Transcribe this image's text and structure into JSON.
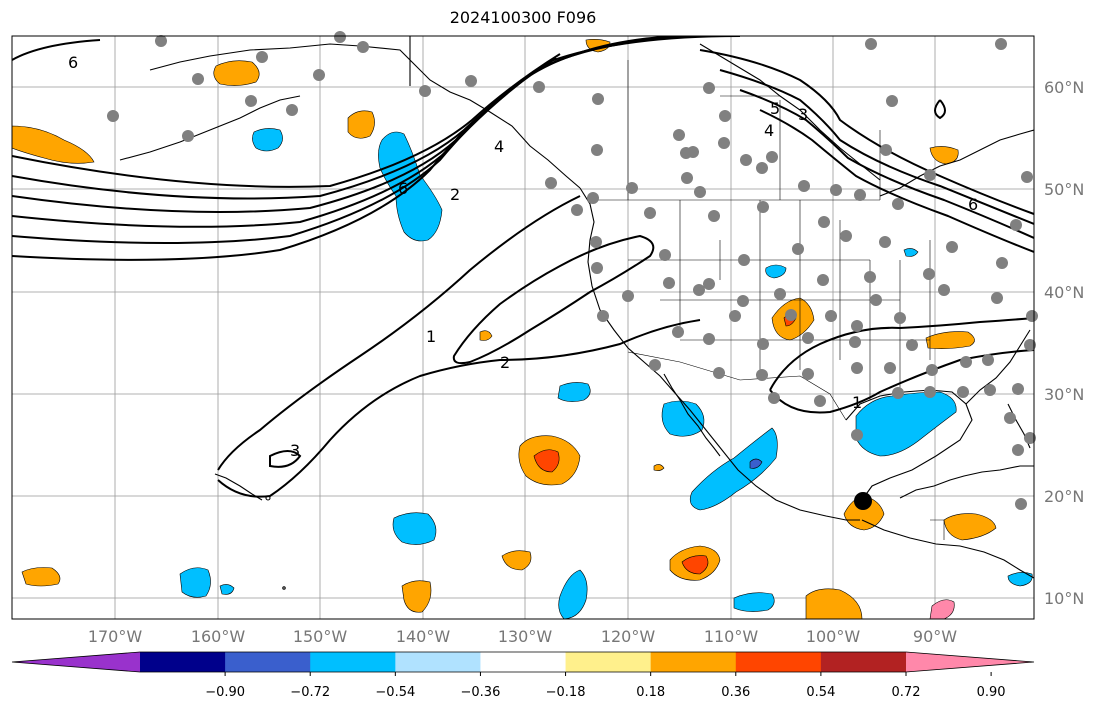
{
  "title": "2024100300 F096",
  "lon_labels": [
    "170°W",
    "160°W",
    "150°W",
    "140°W",
    "130°W",
    "120°W",
    "110°W",
    "100°W",
    "90°W"
  ],
  "lat_labels": [
    "60°N",
    "50°N",
    "40°N",
    "30°N",
    "20°N",
    "10°N"
  ],
  "colorbar": {
    "ticks": [
      "−0.90",
      "−0.72",
      "−0.54",
      "−0.36",
      "−0.18",
      "0.18",
      "0.36",
      "0.54",
      "0.72",
      "0.90"
    ],
    "colors": [
      "#9932cc",
      "#00008b",
      "#3a5fcd",
      "#00bfff",
      "#b0e2ff",
      "#ffffff",
      "#fff08c",
      "#ffa500",
      "#ff4500",
      "#b22222",
      "#ff88aa"
    ]
  },
  "contour_labels": [
    "6",
    "6",
    "2",
    "4",
    "3",
    "4",
    "5",
    "6",
    "1",
    "2",
    "3",
    "1"
  ],
  "colors": {
    "land": "#000000",
    "grid": "#999999",
    "station": "#808080",
    "marker": "#000000"
  }
}
